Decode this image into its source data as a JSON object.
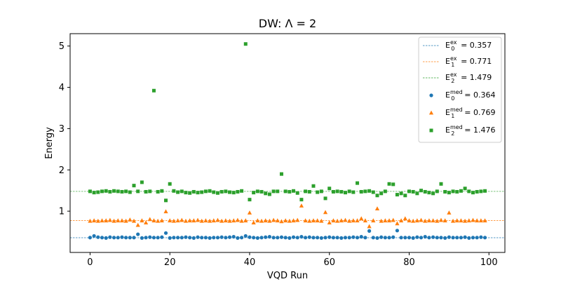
{
  "chart_data": {
    "type": "scatter",
    "title": "DW: Λ = 2",
    "xlabel": "VQD Run",
    "ylabel": "Energy",
    "xlim": [
      -5,
      104
    ],
    "ylim": [
      0.0,
      5.3
    ],
    "xticks": [
      0,
      20,
      40,
      60,
      80,
      100
    ],
    "yticks": [
      1,
      2,
      3,
      4,
      5
    ],
    "grid": false,
    "legend_position": "top-right",
    "reference_lines": [
      {
        "label_main": "E",
        "label_sub": "0",
        "label_sup": "ex",
        "label_value": " = 0.357",
        "y": 0.357,
        "color": "#1f77b4",
        "style": "dashed"
      },
      {
        "label_main": "E",
        "label_sub": "1",
        "label_sup": "ex",
        "label_value": " = 0.771",
        "y": 0.771,
        "color": "#ff7f0e",
        "style": "dashed"
      },
      {
        "label_main": "E",
        "label_sub": "2",
        "label_sup": "ex",
        "label_value": " = 1.479",
        "y": 1.479,
        "color": "#2ca02c",
        "style": "dashed"
      }
    ],
    "series": [
      {
        "label_main": "E",
        "label_sub": "0",
        "label_sup": "med",
        "label_value": " = 0.364",
        "marker": "circle",
        "color": "#1f77b4",
        "x": [
          0,
          1,
          2,
          3,
          4,
          5,
          6,
          7,
          8,
          9,
          10,
          11,
          12,
          13,
          14,
          15,
          16,
          17,
          18,
          19,
          20,
          21,
          22,
          23,
          24,
          25,
          26,
          27,
          28,
          29,
          30,
          31,
          32,
          33,
          34,
          35,
          36,
          37,
          38,
          39,
          40,
          41,
          42,
          43,
          44,
          45,
          46,
          47,
          48,
          49,
          50,
          51,
          52,
          53,
          54,
          55,
          56,
          57,
          58,
          59,
          60,
          61,
          62,
          63,
          64,
          65,
          66,
          67,
          68,
          69,
          70,
          71,
          72,
          73,
          74,
          75,
          76,
          77,
          78,
          79,
          80,
          81,
          82,
          83,
          84,
          85,
          86,
          87,
          88,
          89,
          90,
          91,
          92,
          93,
          94,
          95,
          96,
          97,
          98,
          99
        ],
        "y": [
          0.36,
          0.4,
          0.37,
          0.36,
          0.35,
          0.37,
          0.36,
          0.36,
          0.37,
          0.36,
          0.36,
          0.36,
          0.44,
          0.35,
          0.36,
          0.37,
          0.36,
          0.36,
          0.37,
          0.47,
          0.35,
          0.36,
          0.36,
          0.36,
          0.37,
          0.36,
          0.35,
          0.37,
          0.36,
          0.36,
          0.35,
          0.36,
          0.36,
          0.37,
          0.36,
          0.37,
          0.38,
          0.35,
          0.36,
          0.4,
          0.37,
          0.36,
          0.35,
          0.36,
          0.37,
          0.38,
          0.36,
          0.36,
          0.37,
          0.36,
          0.35,
          0.37,
          0.36,
          0.38,
          0.36,
          0.37,
          0.36,
          0.36,
          0.35,
          0.36,
          0.37,
          0.36,
          0.36,
          0.35,
          0.36,
          0.36,
          0.37,
          0.36,
          0.38,
          0.36,
          0.52,
          0.36,
          0.35,
          0.37,
          0.36,
          0.36,
          0.37,
          0.53,
          0.36,
          0.36,
          0.36,
          0.35,
          0.37,
          0.36,
          0.38,
          0.36,
          0.37,
          0.36,
          0.36,
          0.35,
          0.37,
          0.36,
          0.36,
          0.36,
          0.37,
          0.35,
          0.36,
          0.36,
          0.37,
          0.36
        ]
      },
      {
        "label_main": "E",
        "label_sub": "1",
        "label_sup": "med",
        "label_value": " = 0.769",
        "marker": "triangle",
        "color": "#ff7f0e",
        "x": [
          0,
          1,
          2,
          3,
          4,
          5,
          6,
          7,
          8,
          9,
          10,
          11,
          12,
          13,
          14,
          15,
          16,
          17,
          18,
          19,
          20,
          21,
          22,
          23,
          24,
          25,
          26,
          27,
          28,
          29,
          30,
          31,
          32,
          33,
          34,
          35,
          36,
          37,
          38,
          39,
          40,
          41,
          42,
          43,
          44,
          45,
          46,
          47,
          48,
          49,
          50,
          51,
          52,
          53,
          54,
          55,
          56,
          57,
          58,
          59,
          60,
          61,
          62,
          63,
          64,
          65,
          66,
          67,
          68,
          69,
          70,
          71,
          72,
          73,
          74,
          75,
          76,
          77,
          78,
          79,
          80,
          81,
          82,
          83,
          84,
          85,
          86,
          87,
          88,
          89,
          90,
          91,
          92,
          93,
          94,
          95,
          96,
          97,
          98,
          99
        ],
        "y": [
          0.76,
          0.77,
          0.76,
          0.77,
          0.77,
          0.78,
          0.76,
          0.77,
          0.77,
          0.76,
          0.79,
          0.76,
          0.66,
          0.77,
          0.72,
          0.8,
          0.77,
          0.76,
          0.77,
          0.99,
          0.77,
          0.76,
          0.77,
          0.78,
          0.76,
          0.77,
          0.77,
          0.78,
          0.76,
          0.77,
          0.76,
          0.77,
          0.78,
          0.76,
          0.77,
          0.76,
          0.77,
          0.78,
          0.76,
          0.77,
          0.96,
          0.72,
          0.77,
          0.76,
          0.77,
          0.76,
          0.78,
          0.77,
          0.75,
          0.77,
          0.76,
          0.77,
          0.78,
          1.13,
          0.77,
          0.76,
          0.77,
          0.77,
          0.76,
          0.97,
          0.72,
          0.77,
          0.76,
          0.77,
          0.78,
          0.76,
          0.77,
          0.77,
          0.82,
          0.77,
          0.63,
          0.77,
          1.06,
          0.76,
          0.77,
          0.77,
          0.78,
          0.7,
          0.77,
          0.82,
          0.77,
          0.76,
          0.77,
          0.78,
          0.76,
          0.77,
          0.77,
          0.76,
          0.78,
          0.77,
          0.96,
          0.76,
          0.77,
          0.77,
          0.76,
          0.77,
          0.78,
          0.77,
          0.77,
          0.77
        ]
      },
      {
        "label_main": "E",
        "label_sub": "2",
        "label_sup": "med",
        "label_value": " = 1.476",
        "marker": "square",
        "color": "#2ca02c",
        "x": [
          0,
          1,
          2,
          3,
          4,
          5,
          6,
          7,
          8,
          9,
          10,
          11,
          12,
          13,
          14,
          15,
          16,
          17,
          18,
          19,
          20,
          21,
          22,
          23,
          24,
          25,
          26,
          27,
          28,
          29,
          30,
          31,
          32,
          33,
          34,
          35,
          36,
          37,
          38,
          39,
          40,
          41,
          42,
          43,
          44,
          45,
          46,
          47,
          48,
          49,
          50,
          51,
          52,
          53,
          54,
          55,
          56,
          57,
          58,
          59,
          60,
          61,
          62,
          63,
          64,
          65,
          66,
          67,
          68,
          69,
          70,
          71,
          72,
          73,
          74,
          75,
          76,
          77,
          78,
          79,
          80,
          81,
          82,
          83,
          84,
          85,
          86,
          87,
          88,
          89,
          90,
          91,
          92,
          93,
          94,
          95,
          96,
          97,
          98,
          99
        ],
        "y": [
          1.48,
          1.45,
          1.46,
          1.48,
          1.49,
          1.47,
          1.49,
          1.48,
          1.47,
          1.48,
          1.46,
          1.62,
          1.48,
          1.7,
          1.47,
          1.48,
          3.92,
          1.47,
          1.49,
          1.26,
          1.66,
          1.49,
          1.46,
          1.48,
          1.45,
          1.44,
          1.47,
          1.45,
          1.46,
          1.48,
          1.49,
          1.46,
          1.44,
          1.47,
          1.48,
          1.46,
          1.45,
          1.47,
          1.49,
          5.05,
          1.28,
          1.45,
          1.48,
          1.47,
          1.43,
          1.41,
          1.48,
          1.48,
          1.9,
          1.48,
          1.47,
          1.49,
          1.44,
          1.28,
          1.48,
          1.47,
          1.61,
          1.46,
          1.48,
          1.31,
          1.55,
          1.47,
          1.48,
          1.47,
          1.45,
          1.48,
          1.46,
          1.68,
          1.47,
          1.48,
          1.49,
          1.46,
          1.38,
          1.43,
          1.48,
          1.66,
          1.65,
          1.4,
          1.43,
          1.38,
          1.48,
          1.47,
          1.43,
          1.5,
          1.47,
          1.45,
          1.43,
          1.48,
          1.66,
          1.47,
          1.45,
          1.48,
          1.47,
          1.49,
          1.55,
          1.48,
          1.45,
          1.47,
          1.48,
          1.49
        ]
      }
    ]
  }
}
